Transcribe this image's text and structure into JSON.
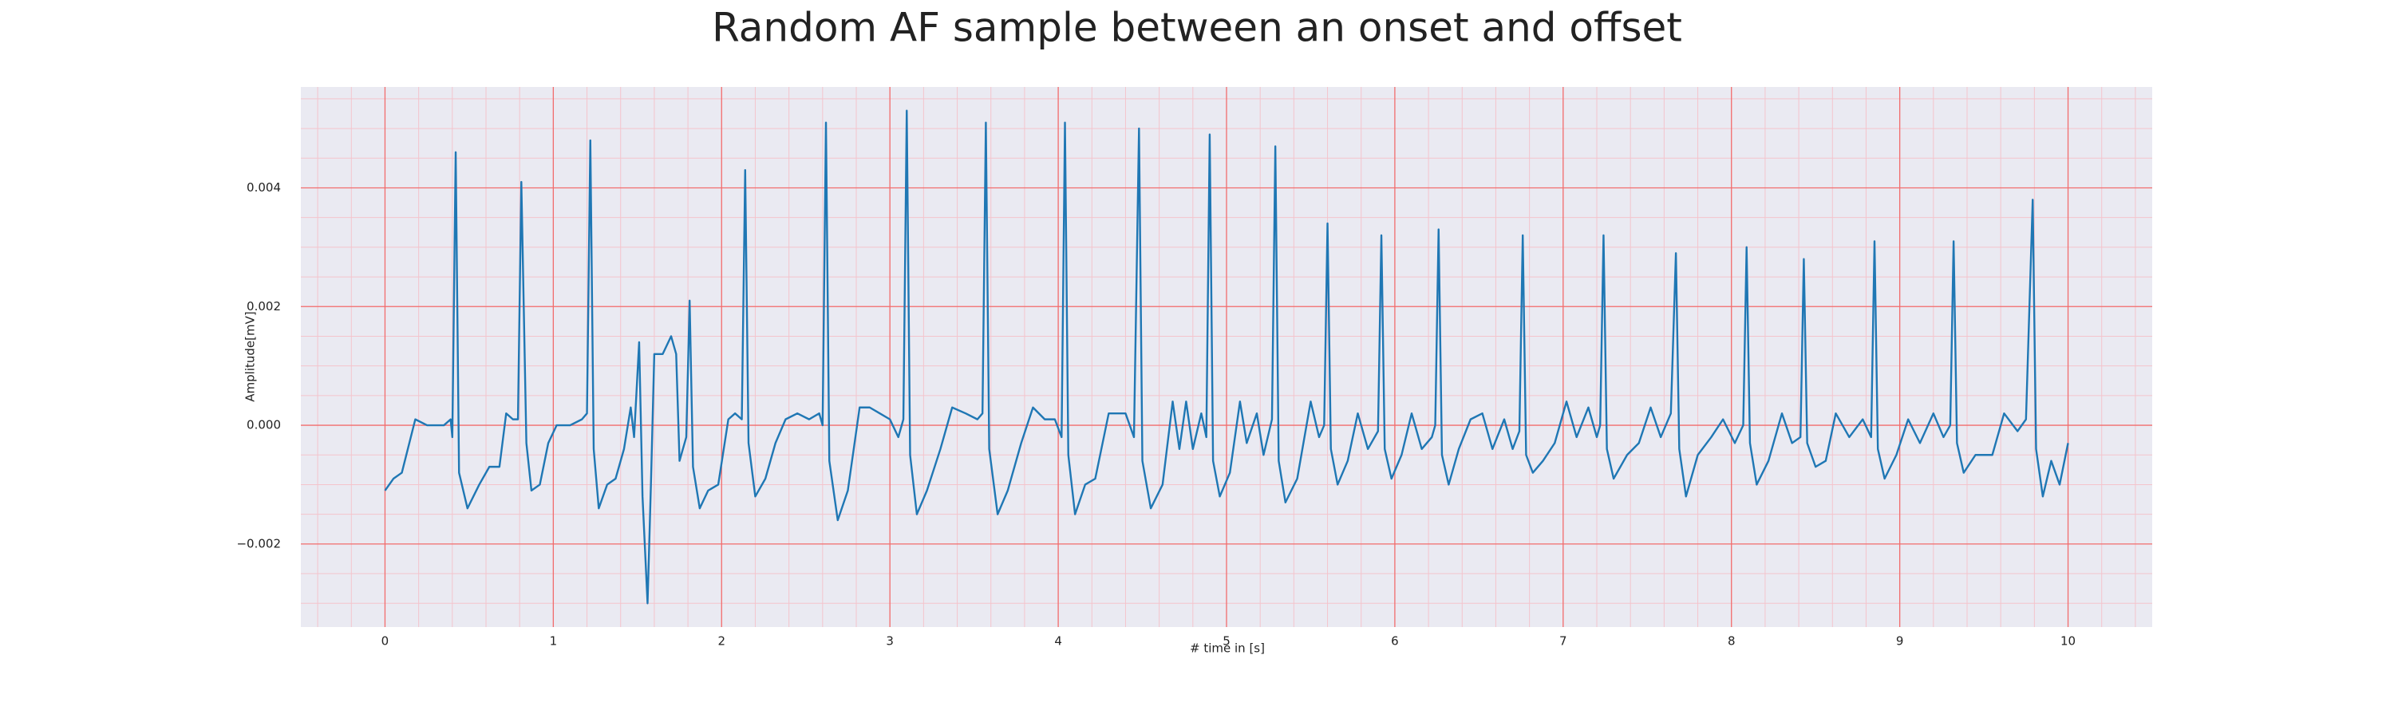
{
  "chart_data": {
    "type": "line",
    "title": "Random AF sample between an onset and offset",
    "x_label": "# time in [s]",
    "y_label": "Amplitude[mV]",
    "color": "#1f77b4",
    "xlim": [
      -0.5,
      10.5
    ],
    "xticks": [
      0,
      1,
      2,
      3,
      4,
      5,
      6,
      7,
      8,
      9,
      10
    ],
    "ylim": [
      -0.0034,
      0.0057
    ],
    "yticks": [
      {
        "value": -0.002,
        "label": "−0.002"
      },
      {
        "value": 0,
        "label": "0.000"
      },
      0.002,
      0.004
    ],
    "grid": true,
    "grid_color": "#f26d6d",
    "minor_grid": true,
    "minor_grid_color": "#f4c4cc",
    "background": "#eaeaf2",
    "x": [
      0.0,
      0.05,
      0.1,
      0.18,
      0.25,
      0.35,
      0.39,
      0.4,
      0.42,
      0.44,
      0.49,
      0.56,
      0.62,
      0.68,
      0.72,
      0.76,
      0.79,
      0.81,
      0.84,
      0.87,
      0.92,
      0.97,
      1.02,
      1.1,
      1.17,
      1.2,
      1.22,
      1.24,
      1.27,
      1.32,
      1.37,
      1.42,
      1.46,
      1.48,
      1.51,
      1.53,
      1.56,
      1.58,
      1.6,
      1.65,
      1.7,
      1.73,
      1.75,
      1.79,
      1.81,
      1.83,
      1.87,
      1.92,
      1.98,
      2.04,
      2.08,
      2.12,
      2.14,
      2.16,
      2.2,
      2.26,
      2.32,
      2.38,
      2.45,
      2.52,
      2.58,
      2.6,
      2.62,
      2.64,
      2.69,
      2.75,
      2.82,
      2.88,
      2.94,
      3.0,
      3.05,
      3.08,
      3.1,
      3.12,
      3.16,
      3.22,
      3.3,
      3.37,
      3.45,
      3.52,
      3.55,
      3.57,
      3.59,
      3.64,
      3.7,
      3.78,
      3.85,
      3.92,
      3.98,
      4.02,
      4.04,
      4.06,
      4.1,
      4.16,
      4.22,
      4.3,
      4.4,
      4.45,
      4.48,
      4.5,
      4.55,
      4.62,
      4.68,
      4.72,
      4.76,
      4.8,
      4.85,
      4.88,
      4.9,
      4.92,
      4.96,
      5.02,
      5.08,
      5.12,
      5.18,
      5.22,
      5.27,
      5.29,
      5.31,
      5.35,
      5.42,
      5.5,
      5.55,
      5.58,
      5.6,
      5.62,
      5.66,
      5.72,
      5.78,
      5.84,
      5.9,
      5.92,
      5.94,
      5.98,
      6.04,
      6.1,
      6.16,
      6.22,
      6.24,
      6.26,
      6.28,
      6.32,
      6.38,
      6.45,
      6.52,
      6.58,
      6.65,
      6.7,
      6.74,
      6.76,
      6.78,
      6.82,
      6.88,
      6.95,
      7.02,
      7.08,
      7.15,
      7.2,
      7.22,
      7.24,
      7.26,
      7.3,
      7.38,
      7.45,
      7.52,
      7.58,
      7.64,
      7.67,
      7.69,
      7.73,
      7.8,
      7.88,
      7.95,
      8.02,
      8.07,
      8.09,
      8.11,
      8.15,
      8.22,
      8.3,
      8.36,
      8.41,
      8.43,
      8.45,
      8.5,
      8.56,
      8.62,
      8.7,
      8.78,
      8.83,
      8.85,
      8.87,
      8.91,
      8.98,
      9.05,
      9.12,
      9.2,
      9.26,
      9.3,
      9.32,
      9.34,
      9.38,
      9.45,
      9.55,
      9.62,
      9.7,
      9.75,
      9.79,
      9.81,
      9.85,
      9.9,
      9.95,
      10.0
    ],
    "values": [
      -0.0011,
      -0.0009,
      -0.0008,
      0.0001,
      0.0,
      0.0,
      0.0001,
      -0.0002,
      0.0046,
      -0.0008,
      -0.0014,
      -0.001,
      -0.0007,
      -0.0007,
      0.0002,
      0.0001,
      0.0001,
      0.0041,
      -0.0003,
      -0.0011,
      -0.001,
      -0.0003,
      0.0,
      0.0,
      0.0001,
      0.0002,
      0.0048,
      -0.0004,
      -0.0014,
      -0.001,
      -0.0009,
      -0.0004,
      0.0003,
      -0.0002,
      0.0014,
      -0.0012,
      -0.003,
      -0.001,
      0.0012,
      0.0012,
      0.0015,
      0.0012,
      -0.0006,
      -0.0002,
      0.0021,
      -0.0007,
      -0.0014,
      -0.0011,
      -0.001,
      0.0001,
      0.0002,
      0.0001,
      0.0043,
      -0.0003,
      -0.0012,
      -0.0009,
      -0.0003,
      0.0001,
      0.0002,
      0.0001,
      0.0002,
      0.0,
      0.0051,
      -0.0006,
      -0.0016,
      -0.0011,
      0.0003,
      0.0003,
      0.0002,
      0.0001,
      -0.0002,
      0.0001,
      0.0053,
      -0.0005,
      -0.0015,
      -0.0011,
      -0.0004,
      0.0003,
      0.0002,
      0.0001,
      0.0002,
      0.0051,
      -0.0004,
      -0.0015,
      -0.0011,
      -0.0003,
      0.0003,
      0.0001,
      0.0001,
      -0.0002,
      0.0051,
      -0.0005,
      -0.0015,
      -0.001,
      -0.0009,
      0.0002,
      0.0002,
      -0.0002,
      0.005,
      -0.0006,
      -0.0014,
      -0.001,
      0.0004,
      -0.0004,
      0.0004,
      -0.0004,
      0.0002,
      -0.0002,
      0.0049,
      -0.0006,
      -0.0012,
      -0.0008,
      0.0004,
      -0.0003,
      0.0002,
      -0.0005,
      0.0001,
      0.0047,
      -0.0006,
      -0.0013,
      -0.0009,
      0.0004,
      -0.0002,
      0.0,
      0.0034,
      -0.0004,
      -0.001,
      -0.0006,
      0.0002,
      -0.0004,
      -0.0001,
      0.0032,
      -0.0004,
      -0.0009,
      -0.0005,
      0.0002,
      -0.0004,
      -0.0002,
      0.0,
      0.0033,
      -0.0005,
      -0.001,
      -0.0004,
      0.0001,
      0.0002,
      -0.0004,
      0.0001,
      -0.0004,
      -0.0001,
      0.0032,
      -0.0005,
      -0.0008,
      -0.0006,
      -0.0003,
      0.0004,
      -0.0002,
      0.0003,
      -0.0002,
      0.0,
      0.0032,
      -0.0004,
      -0.0009,
      -0.0005,
      -0.0003,
      0.0003,
      -0.0002,
      0.0002,
      0.0029,
      -0.0004,
      -0.0012,
      -0.0005,
      -0.0002,
      0.0001,
      -0.0003,
      0.0,
      0.003,
      -0.0003,
      -0.001,
      -0.0006,
      0.0002,
      -0.0003,
      -0.0002,
      0.0028,
      -0.0003,
      -0.0007,
      -0.0006,
      0.0002,
      -0.0002,
      0.0001,
      -0.0002,
      0.0031,
      -0.0004,
      -0.0009,
      -0.0005,
      0.0001,
      -0.0003,
      0.0002,
      -0.0002,
      0.0,
      0.0031,
      -0.0003,
      -0.0008,
      -0.0005,
      -0.0005,
      0.0002,
      -0.0001,
      0.0001,
      0.0038,
      -0.0004,
      -0.0012,
      -0.0006,
      -0.001,
      -0.0003
    ]
  }
}
